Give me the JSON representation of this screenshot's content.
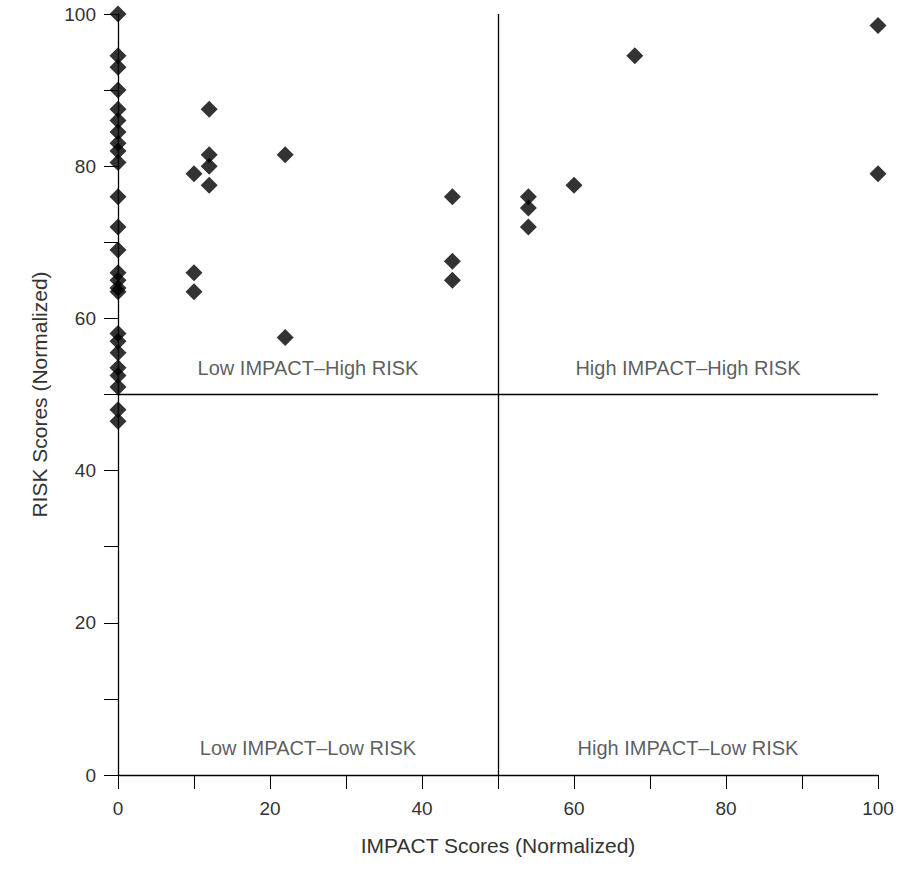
{
  "chart_data": {
    "type": "scatter",
    "x_label": "IMPACT Scores (Normalized)",
    "y_label": "RISK Scores (Normalized)",
    "x": [
      0,
      0,
      0,
      0,
      0,
      0,
      0,
      0,
      0,
      0,
      0,
      0,
      0,
      0,
      0,
      0,
      0,
      0,
      0,
      0,
      0,
      0,
      0,
      0,
      0,
      10,
      10,
      10,
      12,
      12,
      12,
      12,
      22,
      22,
      44,
      44,
      44,
      54,
      54,
      54,
      60,
      68,
      100,
      100
    ],
    "values": [
      100,
      94.5,
      93,
      90,
      87.5,
      86,
      84.5,
      83,
      82,
      80.5,
      76,
      72,
      69,
      66,
      65,
      64,
      63.5,
      58,
      57,
      55.5,
      53.5,
      52.5,
      51,
      48,
      46.5,
      79,
      66,
      63.5,
      87.5,
      81.5,
      80,
      77.5,
      81.5,
      57.5,
      76,
      67.5,
      65,
      76,
      74.5,
      72,
      77.5,
      94.5,
      98.5,
      79
    ],
    "color": "#000000",
    "marker": "diamond",
    "xlim": [
      0,
      100
    ],
    "ylim": [
      0,
      100
    ],
    "xticks": [
      0,
      20,
      40,
      60,
      80,
      100
    ],
    "yticks": [
      0,
      20,
      40,
      60,
      80,
      100
    ],
    "grid": false,
    "dividers": {
      "x": 50,
      "y": 50
    },
    "annotations": [
      {
        "text": "Low IMPACT–High RISK",
        "x": 25,
        "y": 53.5
      },
      {
        "text": "High IMPACT–High RISK",
        "x": 75,
        "y": 53.5
      },
      {
        "text": "Low IMPACT–Low RISK",
        "x": 25,
        "y": 3.5
      },
      {
        "text": "High IMPACT–Low RISK",
        "x": 75,
        "y": 3.5
      }
    ]
  }
}
